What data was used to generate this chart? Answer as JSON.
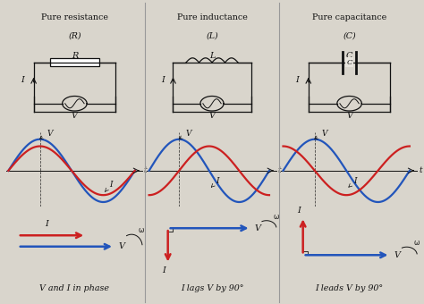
{
  "bg_color": "#d9d5cc",
  "panel_bg": "#e8e5de",
  "border_color": "#999999",
  "blue_color": "#2255bb",
  "red_color": "#cc2020",
  "dark_color": "#111111",
  "panels": [
    {
      "title": "Pure resistance",
      "subtitle": "(R)",
      "caption": "V and I in phase",
      "v_phase": 0.0,
      "i_phase": 0.0
    },
    {
      "title": "Pure inductance",
      "subtitle": "(L)",
      "caption": "I lags V by 90°",
      "v_phase": 0.0,
      "i_phase": -1.5708
    },
    {
      "title": "Pure capacitance",
      "subtitle": "(C)",
      "caption": "I leads V by 90°",
      "v_phase": 0.0,
      "i_phase": 1.5708
    }
  ],
  "component_labels": [
    "R",
    "L",
    "C"
  ]
}
